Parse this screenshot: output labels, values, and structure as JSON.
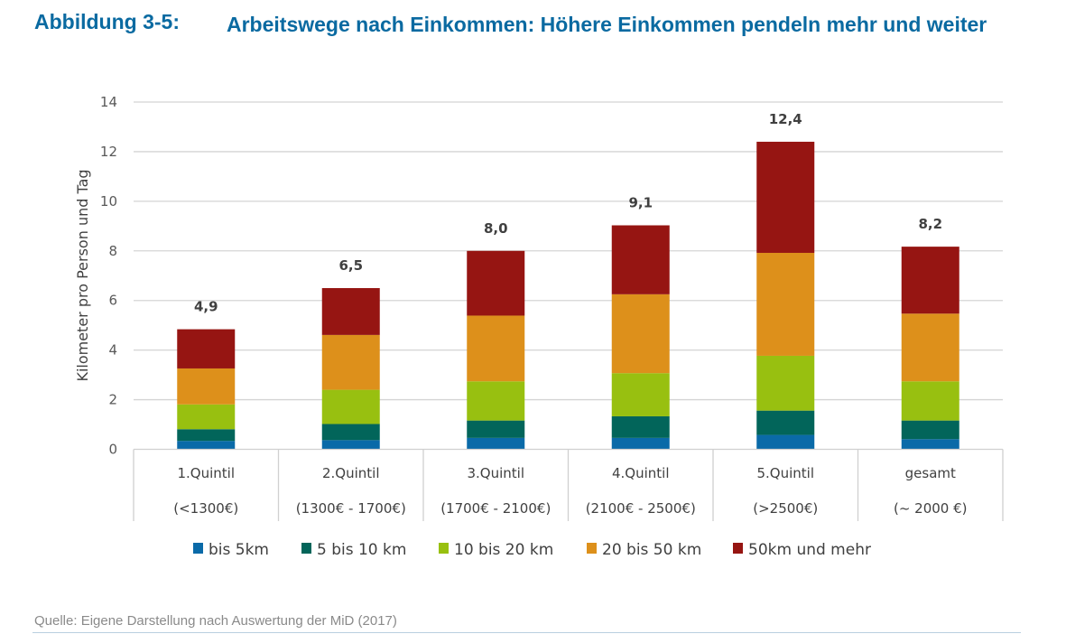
{
  "figure": {
    "label": "Abbildung 3-5:",
    "title": "Arbeitswege nach Einkommen: Höhere Einkommen pendeln mehr und weiter",
    "source": "Quelle: Eigene Darstellung nach Auswertung der MiD (2017)"
  },
  "chart_data": {
    "type": "bar",
    "stacked": true,
    "title": "Arbeitswege nach Einkommen: Höhere Einkommen pendeln mehr und weiter",
    "xlabel": "",
    "ylabel": "Kilometer pro Person und Tag",
    "ylim": [
      0,
      14
    ],
    "yticks": [
      0,
      2,
      4,
      6,
      8,
      10,
      12,
      14
    ],
    "grid": true,
    "legend_position": "bottom",
    "categories": [
      {
        "line1": "1.Quintil",
        "line2": "(<1300€)"
      },
      {
        "line1": "2.Quintil",
        "line2": "(1300€ - 1700€)"
      },
      {
        "line1": "3.Quintil",
        "line2": "(1700€ - 2100€)"
      },
      {
        "line1": "4.Quintil",
        "line2": "(2100€ - 2500€)"
      },
      {
        "line1": "5.Quintil",
        "line2": "(>2500€)"
      },
      {
        "line1": "gesamt",
        "line2": "(~ 2000 €)"
      }
    ],
    "totals_labels": [
      "4,9",
      "6,5",
      "8,0",
      "9,1",
      "12,4",
      "8,2"
    ],
    "series": [
      {
        "name": "bis 5km",
        "color": "#0a6aa8",
        "values": [
          0.34,
          0.37,
          0.46,
          0.46,
          0.58,
          0.41
        ]
      },
      {
        "name": "5 bis 10 km",
        "color": "#02655a",
        "values": [
          0.47,
          0.65,
          0.7,
          0.87,
          0.98,
          0.75
        ]
      },
      {
        "name": "10 bis 20 km",
        "color": "#98c010",
        "values": [
          1.0,
          1.38,
          1.58,
          1.74,
          2.21,
          1.58
        ]
      },
      {
        "name": "20 bis 50 km",
        "color": "#dd901b",
        "values": [
          1.45,
          2.21,
          2.65,
          3.18,
          4.15,
          2.73
        ]
      },
      {
        "name": "50km und mehr",
        "color": "#961512",
        "values": [
          1.58,
          1.89,
          2.61,
          2.78,
          4.48,
          2.7
        ]
      }
    ]
  }
}
